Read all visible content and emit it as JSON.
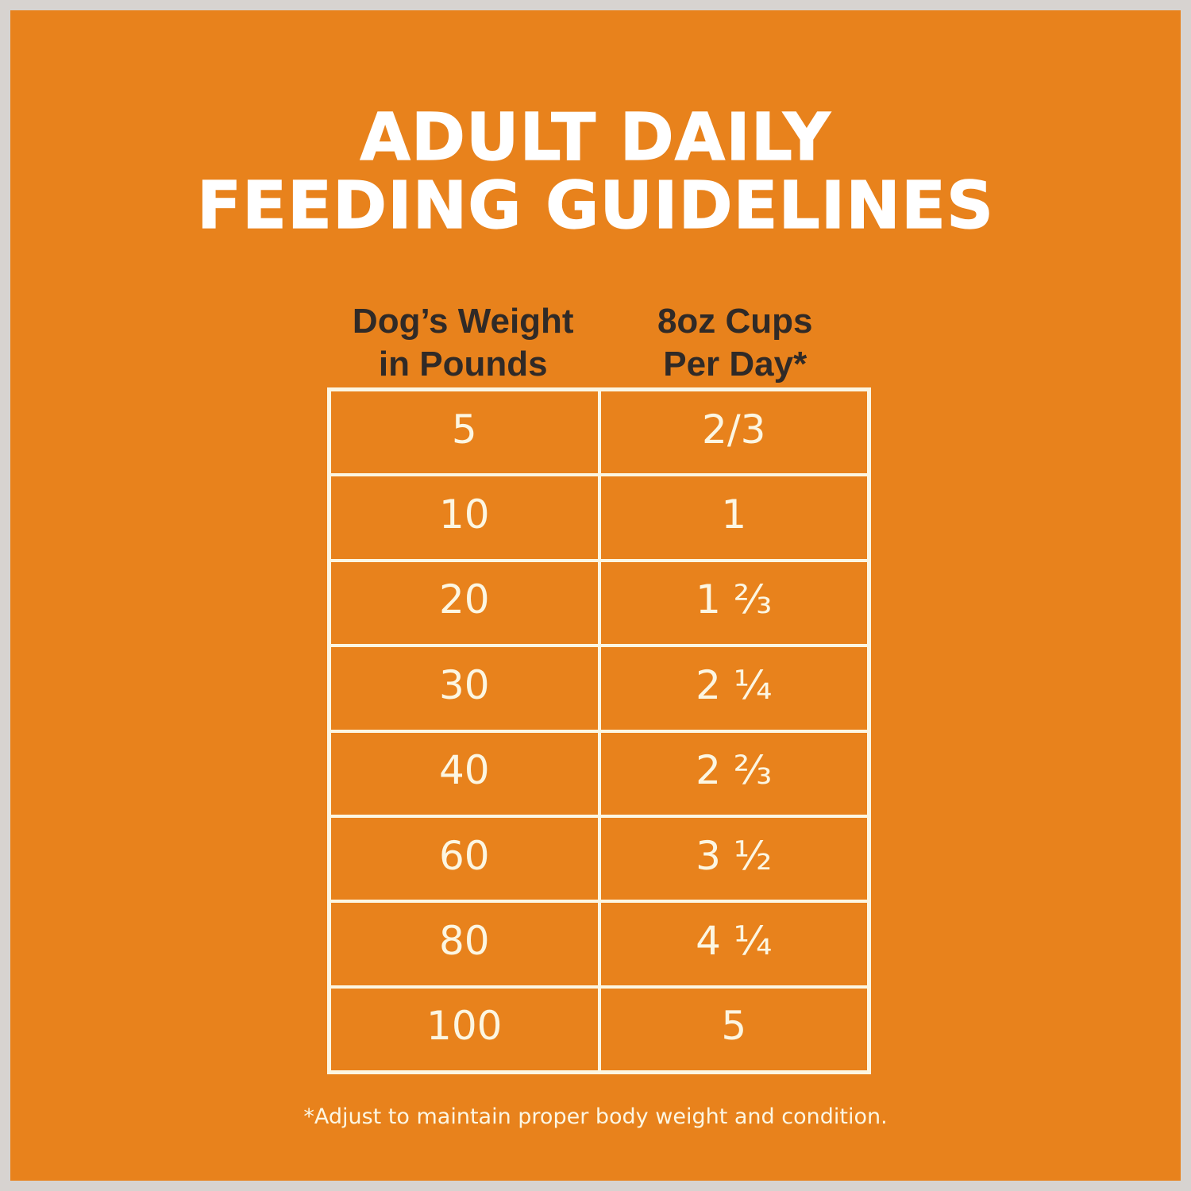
{
  "colors": {
    "frame": "#d7d3d0",
    "panel": "#e8821c",
    "title_text": "#ffffff",
    "header_text": "#302a27",
    "line": "#fcf6e2",
    "cell_text": "#fcf6e2"
  },
  "title": {
    "line1": "ADULT DAILY",
    "line2": "FEEDING GUIDELINES"
  },
  "table": {
    "col1_header_line1": "Dog’s Weight",
    "col1_header_line2": "in Pounds",
    "col2_header_line1": "8oz Cups",
    "col2_header_line2": "Per Day*"
  },
  "footnote": "*Adjust to maintain proper body weight and condition.",
  "chart_data": {
    "type": "table",
    "title": "ADULT DAILY FEEDING GUIDELINES",
    "columns": [
      "Dog’s Weight in Pounds",
      "8oz Cups Per Day*"
    ],
    "rows": [
      [
        "5",
        "2/3"
      ],
      [
        "10",
        "1"
      ],
      [
        "20",
        "1 ⅔"
      ],
      [
        "30",
        "2 ¼"
      ],
      [
        "40",
        "2 ⅔"
      ],
      [
        "60",
        "3 ½"
      ],
      [
        "80",
        "4 ¼"
      ],
      [
        "100",
        "5"
      ]
    ],
    "footnote": "*Adjust to maintain proper body weight and condition.",
    "layout_hints": {
      "background": "orange panel with light gray outer frame",
      "grid": "cream table lines on orange",
      "rows_count": 8
    }
  }
}
